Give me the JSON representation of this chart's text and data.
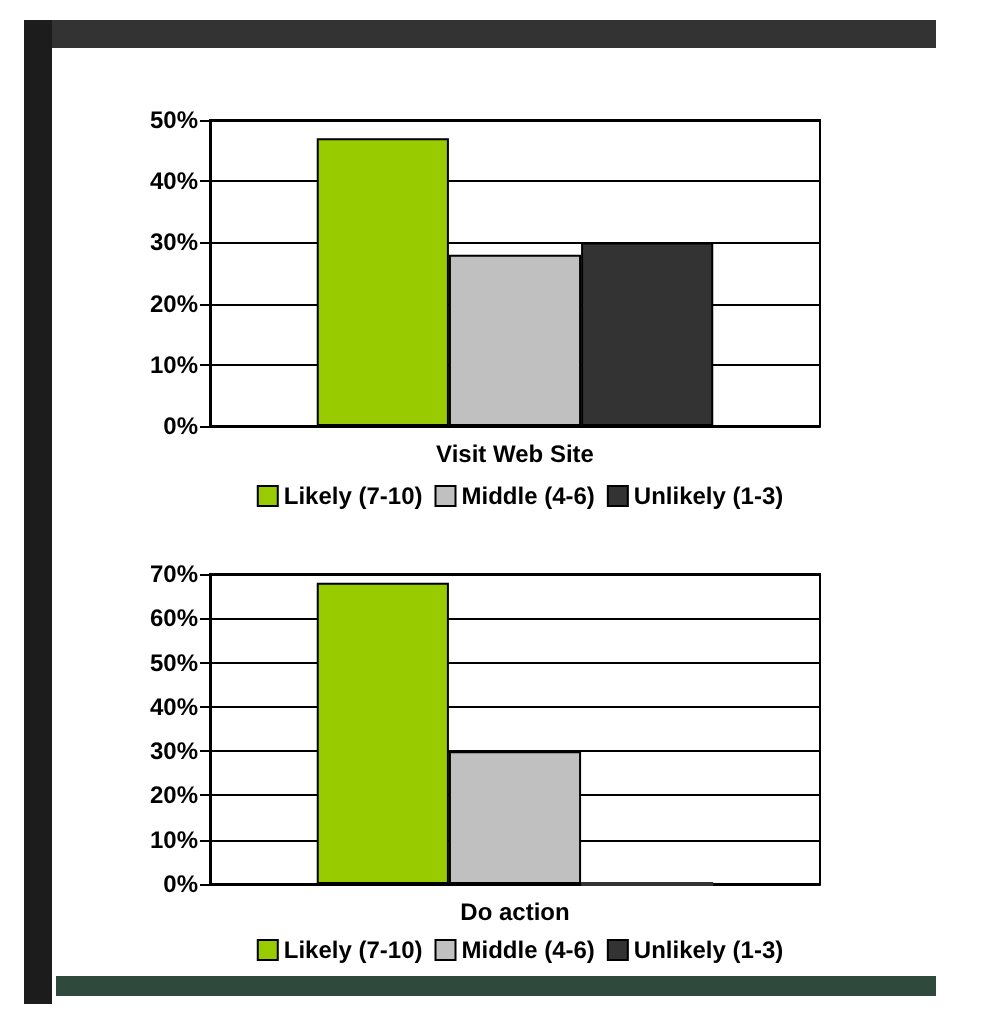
{
  "chart_data": [
    {
      "type": "bar",
      "categories": [
        "Visit Web Site"
      ],
      "series": [
        {
          "name": "Likely (7-10)",
          "color": "#99cc00",
          "values": [
            47
          ]
        },
        {
          "name": "Middle (4-6)",
          "color": "#c0c0c0",
          "values": [
            28
          ]
        },
        {
          "name": "Unlikely (1-3)",
          "color": "#333333",
          "values": [
            30
          ]
        }
      ],
      "ylim": [
        0,
        50
      ],
      "yticks": [
        {
          "value": 0,
          "label": "0%"
        },
        {
          "value": 10,
          "label": "10%"
        },
        {
          "value": 20,
          "label": "20%"
        },
        {
          "value": 30,
          "label": "30%"
        },
        {
          "value": 40,
          "label": "40%"
        },
        {
          "value": 50,
          "label": "50%"
        }
      ],
      "grid": "y",
      "legend": "bottom"
    },
    {
      "type": "bar",
      "categories": [
        "Do action"
      ],
      "series": [
        {
          "name": "Likely (7-10)",
          "color": "#99cc00",
          "values": [
            68
          ]
        },
        {
          "name": "Middle (4-6)",
          "color": "#c0c0c0",
          "values": [
            30
          ]
        },
        {
          "name": "Unlikely (1-3)",
          "color": "#333333",
          "values": [
            0
          ]
        }
      ],
      "ylim": [
        0,
        70
      ],
      "yticks": [
        {
          "value": 0,
          "label": "0%"
        },
        {
          "value": 10,
          "label": "10%"
        },
        {
          "value": 20,
          "label": "20%"
        },
        {
          "value": 30,
          "label": "30%"
        },
        {
          "value": 40,
          "label": "40%"
        },
        {
          "value": 50,
          "label": "50%"
        },
        {
          "value": 60,
          "label": "60%"
        },
        {
          "value": 70,
          "label": "70%"
        }
      ],
      "grid": "y",
      "legend": "bottom"
    }
  ]
}
